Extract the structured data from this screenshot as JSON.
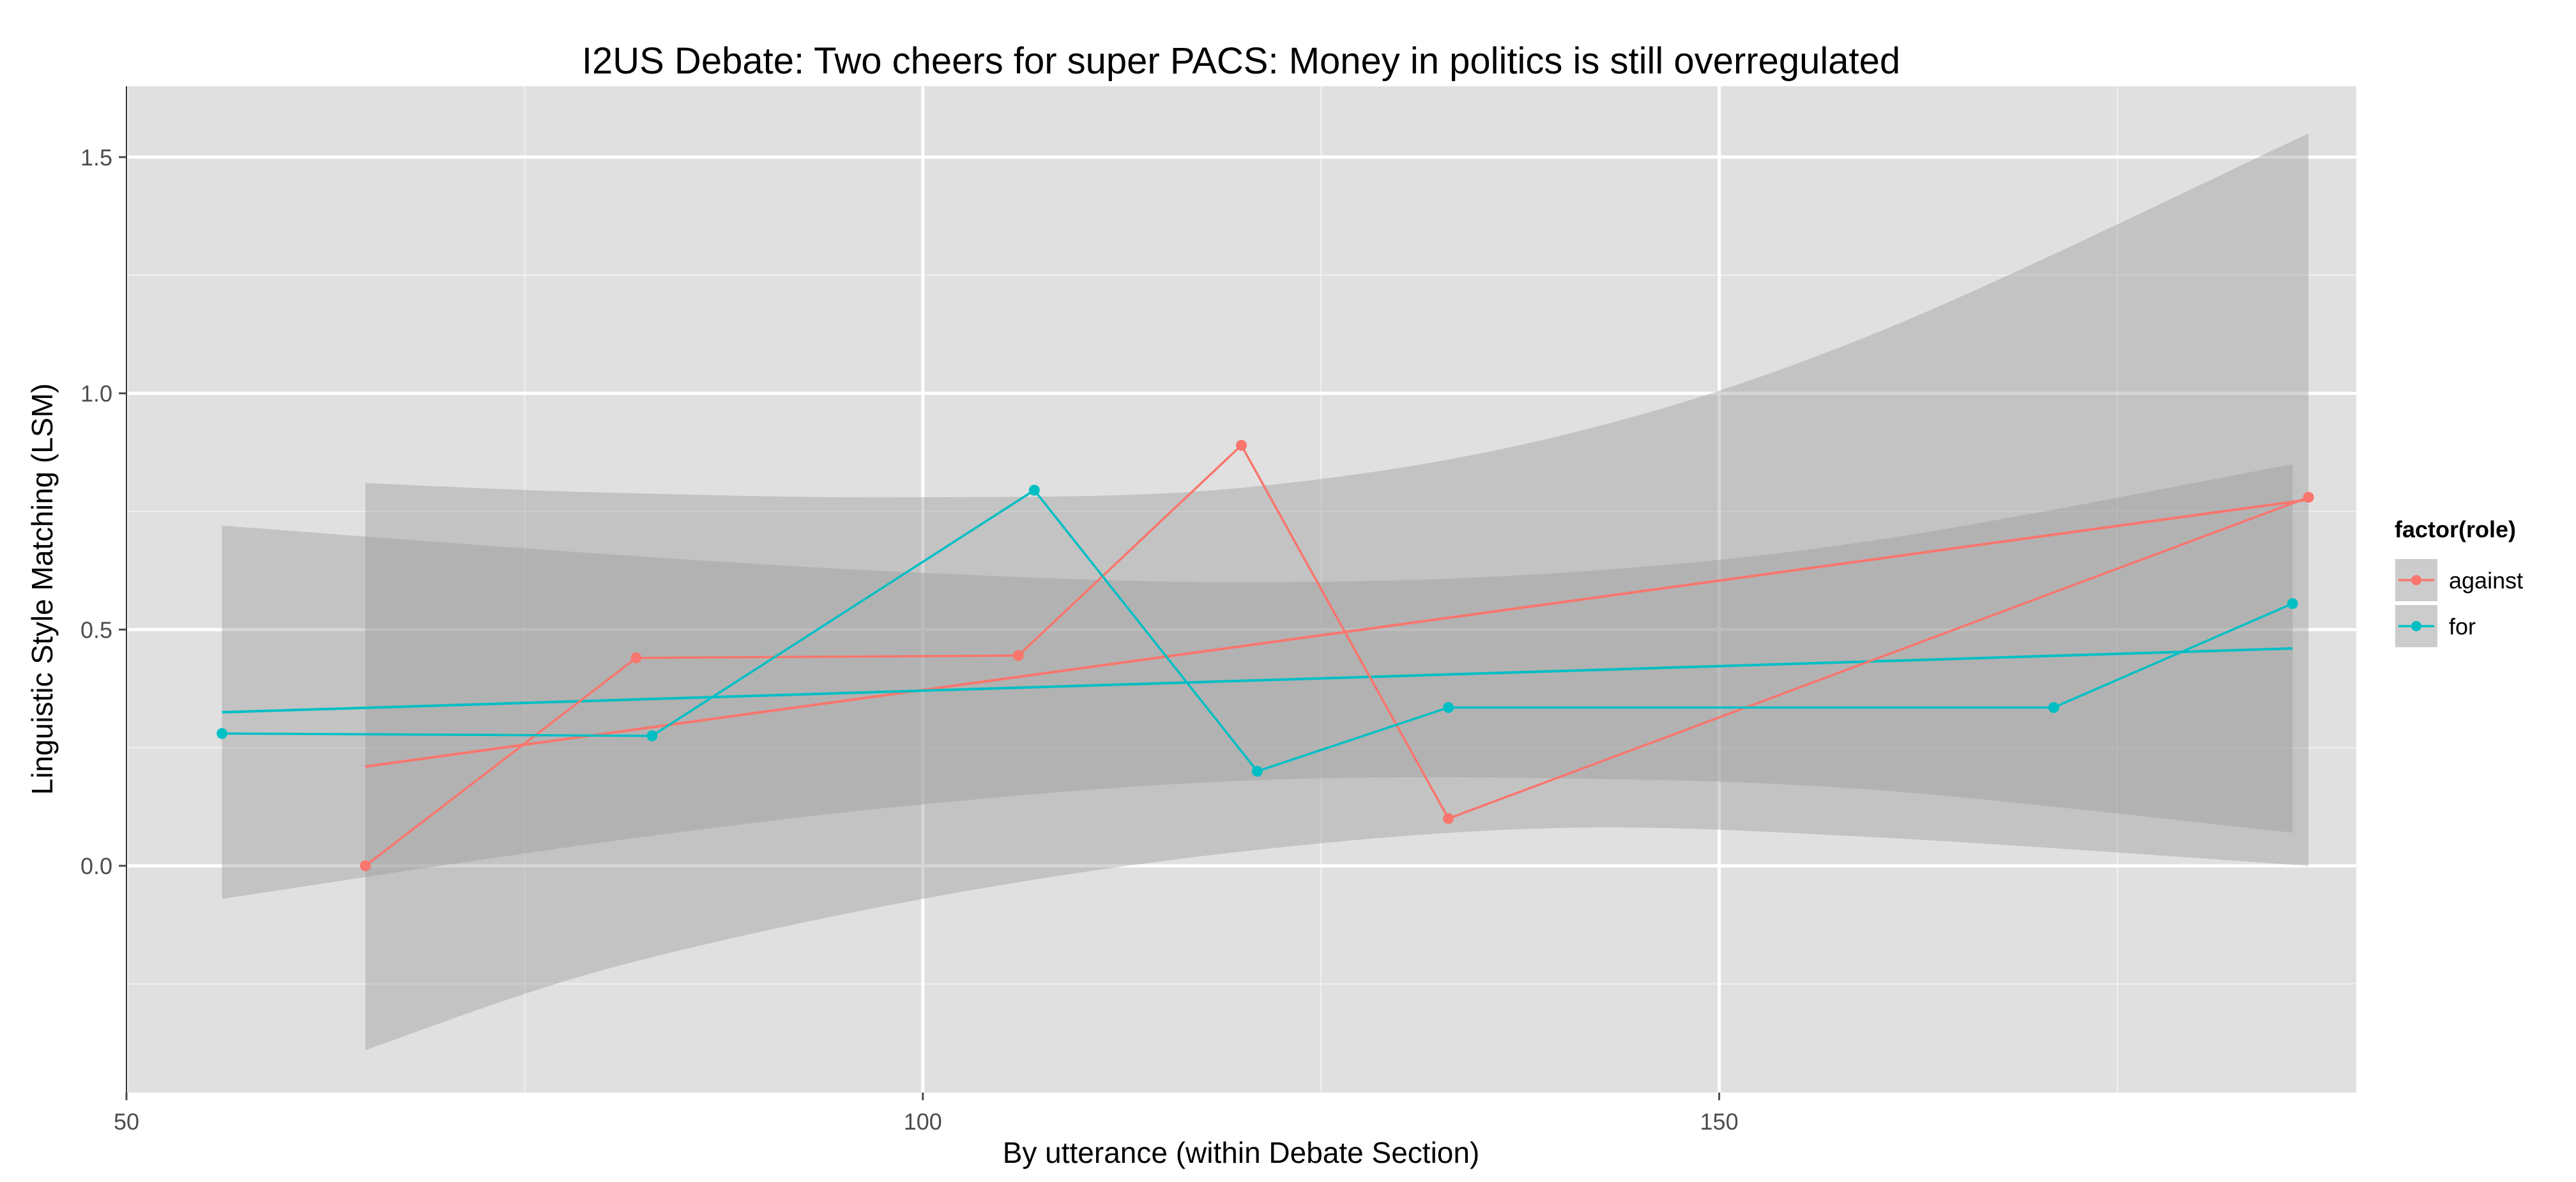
{
  "chart_data": {
    "type": "line",
    "title": "I2US Debate: Two cheers for super PACS: Money in politics is still overregulated",
    "xlabel": "By utterance (within Debate Section)",
    "ylabel": "Linguistic Style Matching (LSM)",
    "xlim": [
      50,
      190
    ],
    "ylim": [
      -0.48,
      1.65
    ],
    "x_ticks": [
      50,
      100,
      150
    ],
    "y_ticks": [
      0.0,
      0.5,
      1.0,
      1.5
    ],
    "x_tick_labels": [
      "50",
      "100",
      "150"
    ],
    "y_tick_labels": [
      "0.0",
      "0.5",
      "1.0",
      "1.5"
    ],
    "grid": true,
    "legend": {
      "title": "factor(role)",
      "position": "right",
      "entries": [
        "against",
        "for"
      ]
    },
    "series": [
      {
        "name": "against",
        "color": "#F8766D",
        "x": [
          65,
          82,
          106,
          120,
          133,
          187
        ],
        "y": [
          0.0,
          0.44,
          0.445,
          0.89,
          0.1,
          0.78
        ],
        "fit": {
          "x": [
            65,
            187
          ],
          "y": [
            0.21,
            0.775
          ]
        },
        "band": {
          "x": [
            65,
            80,
            100,
            120,
            140,
            160,
            187
          ],
          "lower": [
            -0.39,
            -0.22,
            -0.07,
            0.03,
            0.08,
            0.06,
            0.0
          ],
          "upper": [
            0.81,
            0.79,
            0.78,
            0.8,
            0.91,
            1.13,
            1.55
          ]
        }
      },
      {
        "name": "for",
        "color": "#00BFC4",
        "x": [
          56,
          83,
          107,
          121,
          133,
          171,
          186
        ],
        "y": [
          0.28,
          0.275,
          0.795,
          0.2,
          0.335,
          0.335,
          0.555
        ],
        "fit": {
          "x": [
            56,
            186
          ],
          "y": [
            0.325,
            0.46
          ]
        },
        "band": {
          "x": [
            56,
            80,
            100,
            120,
            140,
            160,
            186
          ],
          "lower": [
            -0.07,
            0.05,
            0.13,
            0.18,
            0.185,
            0.16,
            0.07
          ],
          "upper": [
            0.72,
            0.66,
            0.62,
            0.6,
            0.62,
            0.69,
            0.85
          ]
        }
      }
    ]
  }
}
